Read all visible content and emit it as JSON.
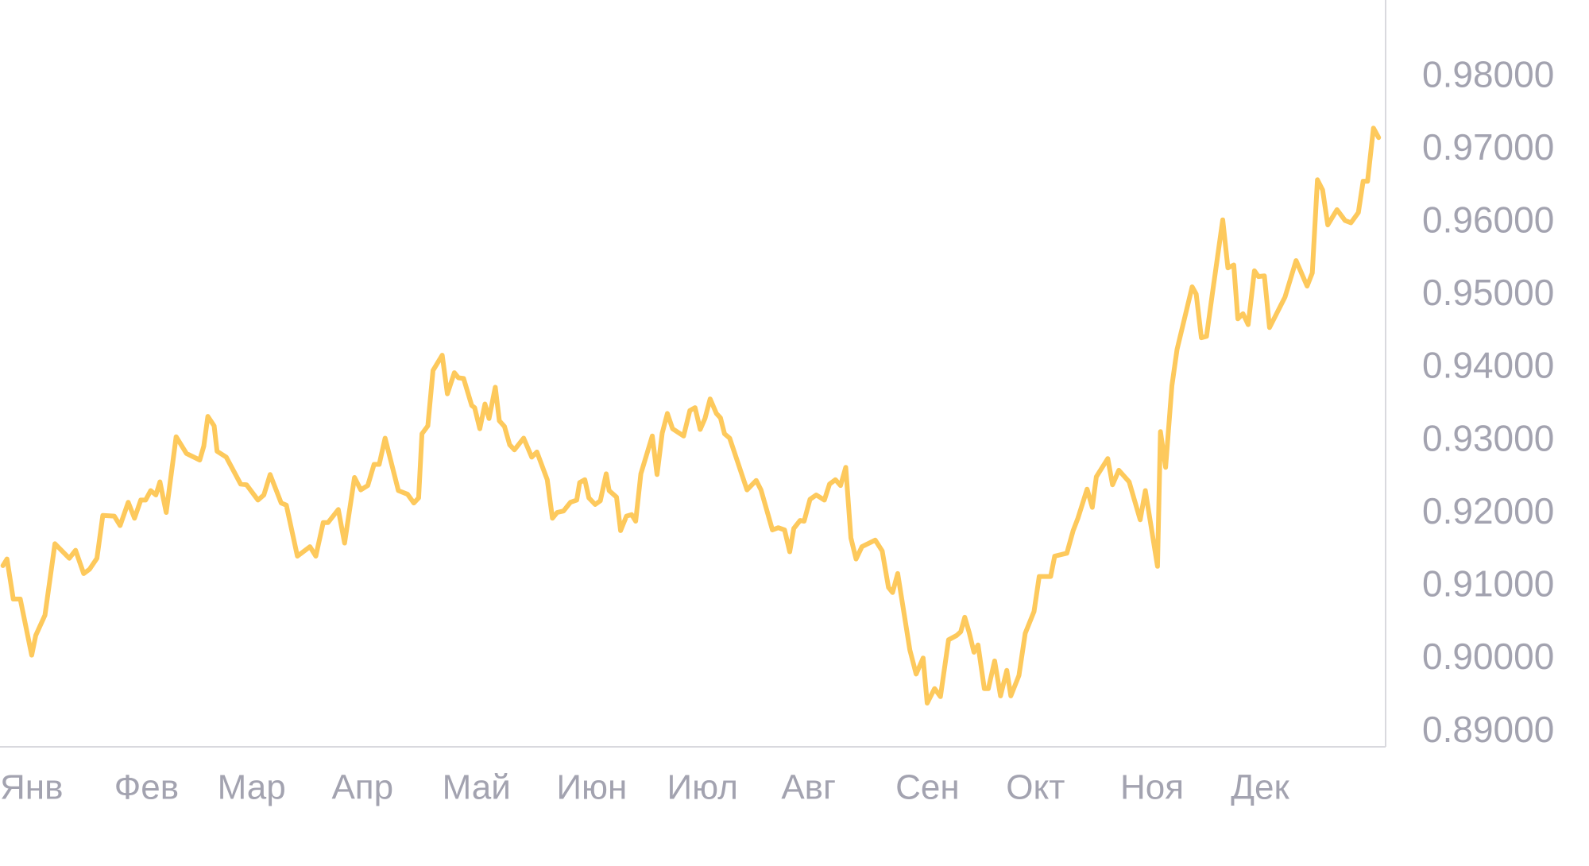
{
  "chart_data": {
    "type": "line",
    "color": "#fdc95c",
    "x": [
      0.8,
      1.9,
      3.6,
      5.5,
      8.6,
      9.7,
      12.2,
      14.9,
      18.8,
      20.5,
      22.7,
      24.3,
      26.3,
      27.9,
      31.0,
      32.6,
      34.8,
      36.5,
      38.2,
      39.5,
      40.9,
      42.3,
      43.4,
      45.1,
      47.8,
      50.6,
      54.2,
      55.3,
      56.4,
      58.1,
      58.9,
      61.4,
      65.3,
      66.9,
      70.0,
      71.6,
      73.3,
      76.3,
      77.7,
      80.7,
      84.1,
      85.7,
      87.7,
      89.0,
      91.8,
      93.5,
      96.2,
      97.9,
      99.8,
      101.5,
      102.9,
      104.5,
      108.1,
      110.6,
      112.3,
      113.6,
      114.5,
      116.1,
      117.5,
      120.0,
      121.4,
      123.3,
      124.4,
      125.8,
      128.0,
      128.8,
      130.2,
      131.6,
      132.7,
      134.4,
      135.5,
      136.9,
      138.3,
      139.6,
      142.1,
      144.3,
      145.7,
      148.5,
      149.9,
      151.2,
      152.9,
      154.8,
      156.5,
      157.3,
      158.7,
      159.8,
      161.5,
      162.9,
      164.5,
      165.3,
      167.3,
      168.4,
      170.0,
      171.4,
      172.5,
      173.9,
      177.0,
      178.3,
      179.7,
      181.1,
      182.5,
      185.5,
      187.2,
      188.6,
      190.0,
      191.3,
      192.7,
      194.4,
      195.5,
      196.6,
      198.0,
      202.7,
      205.2,
      206.5,
      209.6,
      211.2,
      212.9,
      214.3,
      215.4,
      217.1,
      218.2,
      219.8,
      221.5,
      223.7,
      225.1,
      226.7,
      228.1,
      229.5,
      230.9,
      232.3,
      233.9,
      237.5,
      239.4,
      241.1,
      242.2,
      243.6,
      246.9,
      248.6,
      250.5,
      251.6,
      253.6,
      255.2,
      257.4,
      259.6,
      260.7,
      261.8,
      263.0,
      264.3,
      265.4,
      267.1,
      268.2,
      269.9,
      271.5,
      273.2,
      274.3,
      276.5,
      278.2,
      280.6,
      282.0,
      285.1,
      286.2,
      289.5,
      291.2,
      292.5,
      295.0,
      296.4,
      297.5,
      300.6,
      301.9,
      303.6,
      306.4,
      309.4,
      310.8,
      314.1,
      314.9,
      316.3,
      318.0,
      319.4,
      323.5,
      324.6,
      326.0,
      327.4,
      329.0,
      331.8,
      333.2,
      334.8,
      335.9,
      337.3,
      338.7,
      340.4,
      341.5,
      343.1,
      344.5,
      348.7,
      351.7,
      354.7,
      356.1,
      357.5,
      358.9,
      360.3,
      362.8,
      365.0,
      366.6,
      368.6,
      369.9,
      371.1,
      372.7,
      374.1
    ],
    "values": [
      0.9129,
      0.9138,
      0.9083,
      0.9083,
      0.9006,
      0.9033,
      0.9061,
      0.9159,
      0.9139,
      0.915,
      0.9118,
      0.9124,
      0.9139,
      0.9198,
      0.9197,
      0.9184,
      0.9216,
      0.9194,
      0.9219,
      0.9219,
      0.9232,
      0.9226,
      0.9244,
      0.9202,
      0.9306,
      0.9283,
      0.9274,
      0.9293,
      0.9334,
      0.9321,
      0.9286,
      0.9278,
      0.9241,
      0.924,
      0.9219,
      0.9226,
      0.9254,
      0.9215,
      0.9212,
      0.9142,
      0.9155,
      0.9142,
      0.9188,
      0.9188,
      0.9206,
      0.916,
      0.925,
      0.9233,
      0.9239,
      0.9268,
      0.9268,
      0.9304,
      0.9232,
      0.9227,
      0.9215,
      0.9222,
      0.931,
      0.9321,
      0.9397,
      0.9418,
      0.9365,
      0.9394,
      0.9387,
      0.9386,
      0.9349,
      0.9346,
      0.9317,
      0.9351,
      0.9331,
      0.9374,
      0.9328,
      0.932,
      0.9295,
      0.9288,
      0.9304,
      0.9278,
      0.9285,
      0.9247,
      0.9194,
      0.9202,
      0.9204,
      0.9216,
      0.9219,
      0.9243,
      0.9247,
      0.9222,
      0.9213,
      0.9218,
      0.9255,
      0.9232,
      0.9223,
      0.9177,
      0.9197,
      0.9199,
      0.919,
      0.9255,
      0.9307,
      0.9254,
      0.9311,
      0.9338,
      0.9317,
      0.9307,
      0.9342,
      0.9346,
      0.9316,
      0.9331,
      0.9358,
      0.9338,
      0.9332,
      0.931,
      0.9304,
      0.9233,
      0.9246,
      0.9233,
      0.9178,
      0.9181,
      0.9178,
      0.9148,
      0.918,
      0.9191,
      0.919,
      0.922,
      0.9226,
      0.9219,
      0.9241,
      0.9247,
      0.9239,
      0.9264,
      0.9167,
      0.9138,
      0.9155,
      0.9164,
      0.9149,
      0.9099,
      0.9092,
      0.9118,
      0.9013,
      0.898,
      0.9002,
      0.894,
      0.896,
      0.8949,
      0.9027,
      0.9033,
      0.9038,
      0.9058,
      0.9037,
      0.901,
      0.902,
      0.896,
      0.896,
      0.8998,
      0.895,
      0.8985,
      0.895,
      0.8978,
      0.9036,
      0.9066,
      0.9114,
      0.9114,
      0.9142,
      0.9146,
      0.9177,
      0.9194,
      0.9234,
      0.9209,
      0.9251,
      0.9276,
      0.924,
      0.926,
      0.9244,
      0.9192,
      0.9232,
      0.9128,
      0.9313,
      0.9264,
      0.9376,
      0.9426,
      0.9512,
      0.9502,
      0.9442,
      0.9444,
      0.9503,
      0.9604,
      0.9538,
      0.9542,
      0.9468,
      0.9475,
      0.946,
      0.9534,
      0.9526,
      0.9527,
      0.9456,
      0.9498,
      0.9548,
      0.9513,
      0.9531,
      0.9659,
      0.9645,
      0.9597,
      0.9618,
      0.9603,
      0.96,
      0.9614,
      0.9657,
      0.9657,
      0.973,
      0.9717
    ],
    "xlim": [
      0,
      376
    ],
    "xticks": [
      {
        "value": 0,
        "label": "Янв"
      },
      {
        "value": 31,
        "label": "Фев"
      },
      {
        "value": 59,
        "label": "Мар"
      },
      {
        "value": 90,
        "label": "Апр"
      },
      {
        "value": 120,
        "label": "Май"
      },
      {
        "value": 151,
        "label": "Июн"
      },
      {
        "value": 181,
        "label": "Июл"
      },
      {
        "value": 212,
        "label": "Авг"
      },
      {
        "value": 243,
        "label": "Сен"
      },
      {
        "value": 273,
        "label": "Окт"
      },
      {
        "value": 304,
        "label": "Ноя"
      },
      {
        "value": 334,
        "label": "Дек"
      }
    ],
    "ylim": [
      0.888,
      0.9906
    ],
    "yticks": [
      {
        "value": 0.98,
        "label": "0.98000"
      },
      {
        "value": 0.97,
        "label": "0.97000"
      },
      {
        "value": 0.96,
        "label": "0.96000"
      },
      {
        "value": 0.95,
        "label": "0.95000"
      },
      {
        "value": 0.94,
        "label": "0.94000"
      },
      {
        "value": 0.93,
        "label": "0.93000"
      },
      {
        "value": 0.92,
        "label": "0.92000"
      },
      {
        "value": 0.91,
        "label": "0.91000"
      },
      {
        "value": 0.9,
        "label": "0.90000"
      },
      {
        "value": 0.89,
        "label": "0.89000"
      }
    ],
    "grid": false
  }
}
